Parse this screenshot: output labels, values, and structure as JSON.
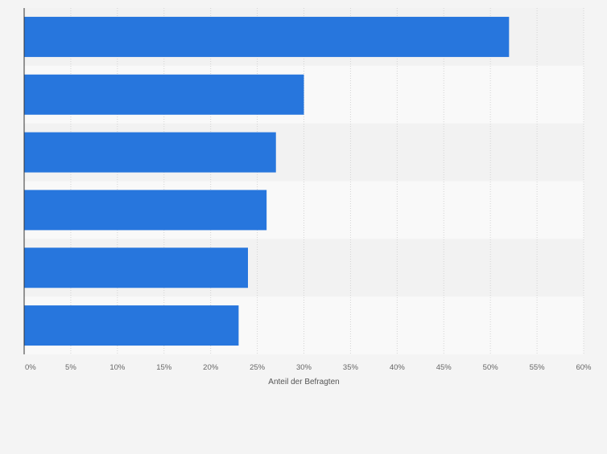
{
  "colors": {
    "bar": "#2776dd",
    "band_light": "#f9f9f9",
    "band_dark": "#f2f2f2",
    "grid": "#d3d3d3",
    "axis": "#333333",
    "tick_text": "#666666"
  },
  "chart_data": {
    "type": "bar",
    "orientation": "horizontal",
    "categories": [
      "",
      "",
      "",
      "",
      "",
      ""
    ],
    "values": [
      52,
      30,
      27,
      26,
      24,
      23
    ],
    "unit": "%",
    "title": "",
    "xlabel": "Anteil der Befragten",
    "ylabel": "",
    "xlim": [
      0,
      60
    ],
    "x_ticks": [
      "0%",
      "5%",
      "10%",
      "15%",
      "20%",
      "25%",
      "30%",
      "35%",
      "40%",
      "45%",
      "50%",
      "55%",
      "60%"
    ],
    "grid": "vertical dashed",
    "legend": "none"
  }
}
